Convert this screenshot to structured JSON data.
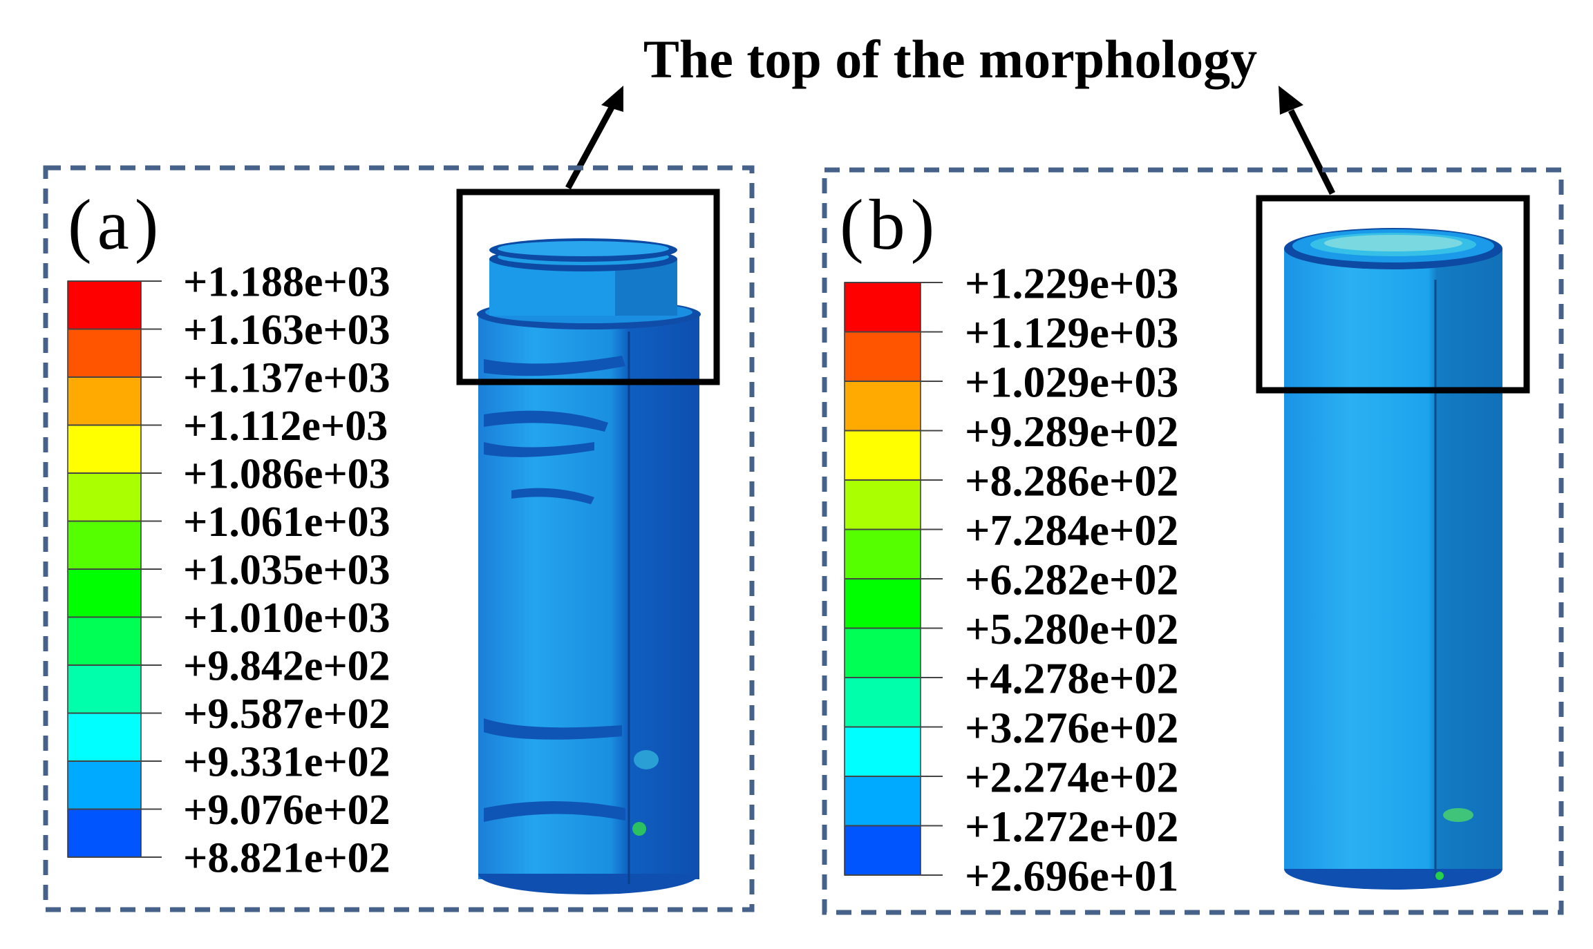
{
  "annotation": "The top of the morphology",
  "panels": [
    {
      "id": "a",
      "label": "(a)",
      "legend_values": [
        "+1.188e+03",
        "+1.163e+03",
        "+1.137e+03",
        "+1.112e+03",
        "+1.086e+03",
        "+1.061e+03",
        "+1.035e+03",
        "+1.010e+03",
        "+9.842e+02",
        "+9.587e+02",
        "+9.331e+02",
        "+9.076e+02",
        "+8.821e+02"
      ]
    },
    {
      "id": "b",
      "label": "(b)",
      "legend_values": [
        "+1.229e+03",
        "+1.129e+03",
        "+1.029e+03",
        "+9.289e+02",
        "+8.286e+02",
        "+7.284e+02",
        "+6.282e+02",
        "+5.280e+02",
        "+4.278e+02",
        "+3.276e+02",
        "+2.274e+02",
        "+1.272e+02",
        "+2.696e+01"
      ]
    }
  ],
  "colors": {
    "legend_bands": [
      "#ff0000",
      "#ff5500",
      "#ffaa00",
      "#ffff00",
      "#aaff00",
      "#55ff00",
      "#00ff00",
      "#00ff55",
      "#00ffaa",
      "#00ffff",
      "#00aaff",
      "#0055ff",
      "#0000ff"
    ],
    "frame": "#46628a",
    "cylinder_light": "#15a6ef",
    "cylinder_dark": "#0f5db8",
    "cylinder_shadow": "#0d47a1"
  }
}
